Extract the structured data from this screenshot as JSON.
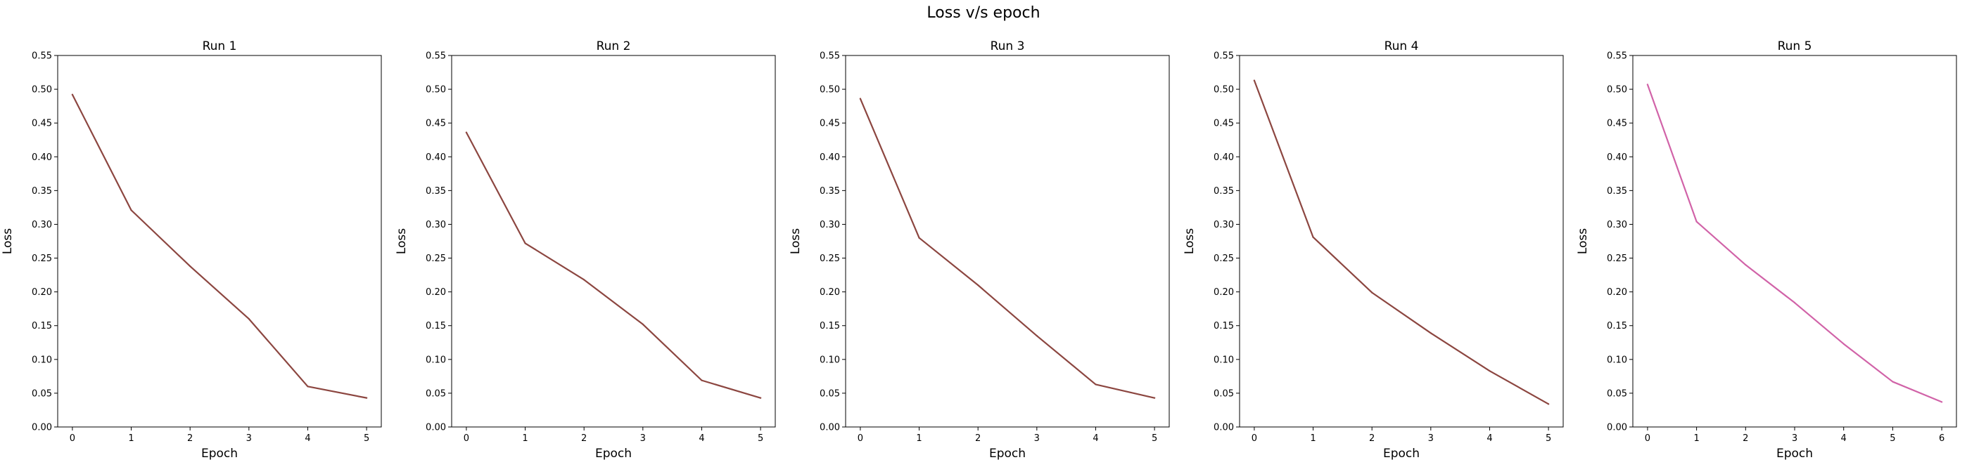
{
  "figure": {
    "title": "Loss v/s epoch"
  },
  "chart_data": [
    {
      "type": "line",
      "title": "Run 1",
      "xlabel": "Epoch",
      "ylabel": "Loss",
      "x": [
        0,
        1,
        2,
        3,
        4,
        5
      ],
      "series": [
        {
          "values": [
            0.492,
            0.321,
            0.238,
            0.16,
            0.06,
            0.043
          ],
          "color": "#8c4640"
        }
      ],
      "ylim": [
        0,
        0.55
      ],
      "yticks": [
        "0.00",
        "0.05",
        "0.10",
        "0.15",
        "0.20",
        "0.25",
        "0.30",
        "0.35",
        "0.40",
        "0.45",
        "0.50",
        "0.55"
      ],
      "xticks": [
        "0",
        "1",
        "2",
        "3",
        "4",
        "5"
      ],
      "grid": false
    },
    {
      "type": "line",
      "title": "Run 2",
      "xlabel": "Epoch",
      "ylabel": "Loss",
      "x": [
        0,
        1,
        2,
        3,
        4,
        5
      ],
      "series": [
        {
          "values": [
            0.436,
            0.272,
            0.218,
            0.152,
            0.069,
            0.043
          ],
          "color": "#8c4640"
        }
      ],
      "ylim": [
        0,
        0.55
      ],
      "yticks": [
        "0.00",
        "0.05",
        "0.10",
        "0.15",
        "0.20",
        "0.25",
        "0.30",
        "0.35",
        "0.40",
        "0.45",
        "0.50",
        "0.55"
      ],
      "xticks": [
        "0",
        "1",
        "2",
        "3",
        "4",
        "5"
      ],
      "grid": false
    },
    {
      "type": "line",
      "title": "Run 3",
      "xlabel": "Epoch",
      "ylabel": "Loss",
      "x": [
        0,
        1,
        2,
        3,
        4,
        5
      ],
      "series": [
        {
          "values": [
            0.486,
            0.28,
            0.21,
            0.135,
            0.063,
            0.043
          ],
          "color": "#8c4640"
        }
      ],
      "ylim": [
        0,
        0.55
      ],
      "yticks": [
        "0.00",
        "0.05",
        "0.10",
        "0.15",
        "0.20",
        "0.25",
        "0.30",
        "0.35",
        "0.40",
        "0.45",
        "0.50",
        "0.55"
      ],
      "xticks": [
        "0",
        "1",
        "2",
        "3",
        "4",
        "5"
      ],
      "grid": false
    },
    {
      "type": "line",
      "title": "Run 4",
      "xlabel": "Epoch",
      "ylabel": "Loss",
      "x": [
        0,
        1,
        2,
        3,
        4,
        5
      ],
      "series": [
        {
          "values": [
            0.513,
            0.281,
            0.199,
            0.139,
            0.083,
            0.034
          ],
          "color": "#8c4640"
        }
      ],
      "ylim": [
        0,
        0.55
      ],
      "yticks": [
        "0.00",
        "0.05",
        "0.10",
        "0.15",
        "0.20",
        "0.25",
        "0.30",
        "0.35",
        "0.40",
        "0.45",
        "0.50",
        "0.55"
      ],
      "xticks": [
        "0",
        "1",
        "2",
        "3",
        "4",
        "5"
      ],
      "grid": false
    },
    {
      "type": "line",
      "title": "Run 5",
      "xlabel": "Epoch",
      "ylabel": "Loss",
      "x": [
        0,
        1,
        2,
        3,
        4,
        5,
        6
      ],
      "series": [
        {
          "values": [
            0.507,
            0.304,
            0.24,
            0.184,
            0.123,
            0.067,
            0.037
          ],
          "color": "#d163a8"
        }
      ],
      "ylim": [
        0,
        0.55
      ],
      "yticks": [
        "0.00",
        "0.05",
        "0.10",
        "0.15",
        "0.20",
        "0.25",
        "0.30",
        "0.35",
        "0.40",
        "0.45",
        "0.50",
        "0.55"
      ],
      "xticks": [
        "0",
        "1",
        "2",
        "3",
        "4",
        "5",
        "6"
      ],
      "grid": false
    }
  ]
}
